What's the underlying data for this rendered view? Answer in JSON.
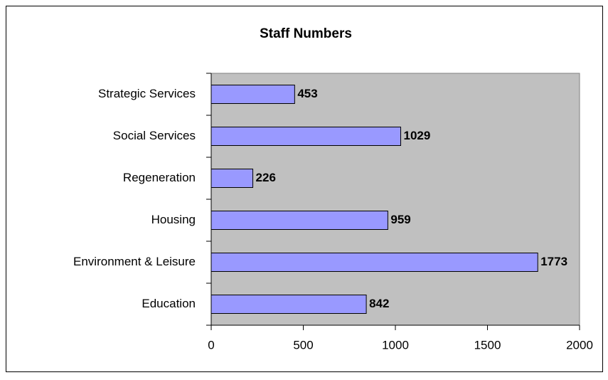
{
  "chart_data": {
    "type": "bar",
    "orientation": "horizontal",
    "title": "Staff Numbers",
    "categories": [
      "Strategic Services",
      "Social Services",
      "Regeneration",
      "Housing",
      "Environment & Leisure",
      "Education"
    ],
    "values": [
      453,
      1029,
      226,
      959,
      1773,
      842
    ],
    "color": "#9999ff",
    "xlim": [
      0,
      2000
    ],
    "xticks": [
      0,
      500,
      1000,
      1500,
      2000
    ],
    "grid": false
  }
}
